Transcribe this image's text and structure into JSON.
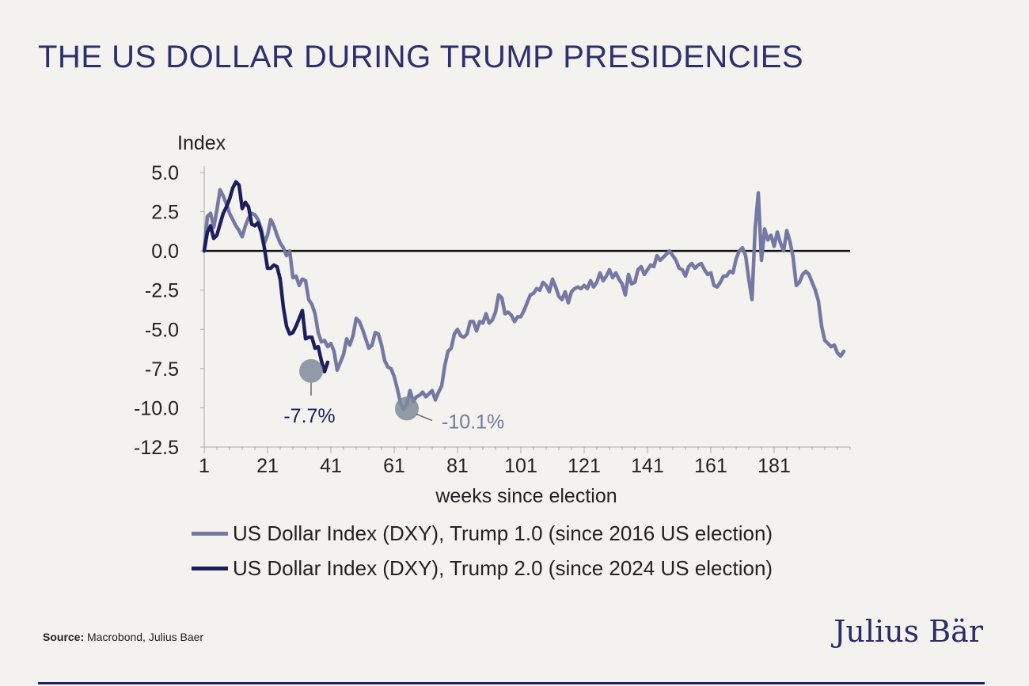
{
  "title": "THE US DOLLAR DURING TRUMP PRESIDENCIES",
  "source_label": "Source:",
  "source_text": "Macrobond, Julius Baer",
  "logo_text": "Julius Bär",
  "colors": {
    "trump1": "#7478a3",
    "trump2": "#1c1f5c",
    "marker": "#7f8b99",
    "zero_line": "#111111"
  },
  "chart_data": {
    "type": "line",
    "ylabel": "Index",
    "xlabel": "weeks since election",
    "ylim": [
      -12.5,
      5.0
    ],
    "yticks": [
      "5.0",
      "2.5",
      "0.0",
      "-2.5",
      "-5.0",
      "-7.5",
      "-10.0",
      "-12.5"
    ],
    "ytick_values": [
      5.0,
      2.5,
      0.0,
      -2.5,
      -5.0,
      -7.5,
      -10.0,
      -12.5
    ],
    "xlim": [
      1,
      205
    ],
    "xticks": [
      1,
      21,
      41,
      61,
      81,
      101,
      121,
      141,
      161,
      181
    ],
    "annotations": [
      {
        "text": "-7.7%",
        "x": 35,
        "y": -7.7,
        "series": "trump2"
      },
      {
        "text": "-10.1%",
        "x": 65,
        "y": -10.1,
        "series": "trump1"
      }
    ],
    "series": [
      {
        "id": "trump1",
        "name": "US Dollar Index (DXY), Trump 1.0 (since 2016 US election)",
        "points": [
          [
            1,
            0
          ],
          [
            2,
            2.2
          ],
          [
            3,
            2.4
          ],
          [
            4,
            1.5
          ],
          [
            5,
            2.6
          ],
          [
            6,
            3.9
          ],
          [
            7,
            3.5
          ],
          [
            8,
            3.0
          ],
          [
            9,
            2.4
          ],
          [
            10,
            2.0
          ],
          [
            11,
            1.6
          ],
          [
            12,
            1.3
          ],
          [
            13,
            0.9
          ],
          [
            14,
            1.6
          ],
          [
            15,
            2.1
          ],
          [
            16,
            2.4
          ],
          [
            17,
            2.3
          ],
          [
            18,
            2.0
          ],
          [
            19,
            1.4
          ],
          [
            20,
            0.5
          ],
          [
            21,
            1.0
          ],
          [
            22,
            2.0
          ],
          [
            23,
            1.6
          ],
          [
            24,
            1.0
          ],
          [
            25,
            0.5
          ],
          [
            26,
            0.2
          ],
          [
            27,
            -0.3
          ],
          [
            28,
            0.0
          ],
          [
            29,
            -1.7
          ],
          [
            30,
            -1.6
          ],
          [
            31,
            -2.2
          ],
          [
            32,
            -1.8
          ],
          [
            33,
            -1.9
          ],
          [
            34,
            -3.1
          ],
          [
            35,
            -3.4
          ],
          [
            36,
            -4.0
          ],
          [
            37,
            -5.2
          ],
          [
            38,
            -5.8
          ],
          [
            39,
            -5.7
          ],
          [
            40,
            -6.1
          ],
          [
            41,
            -5.9
          ],
          [
            42,
            -6.4
          ],
          [
            43,
            -7.6
          ],
          [
            44,
            -7.1
          ],
          [
            45,
            -6.6
          ],
          [
            46,
            -5.6
          ],
          [
            47,
            -6.0
          ],
          [
            48,
            -5.4
          ],
          [
            49,
            -4.3
          ],
          [
            50,
            -4.5
          ],
          [
            51,
            -5.0
          ],
          [
            52,
            -5.6
          ],
          [
            53,
            -6.2
          ],
          [
            54,
            -6.0
          ],
          [
            55,
            -5.2
          ],
          [
            56,
            -5.3
          ],
          [
            57,
            -6.0
          ],
          [
            58,
            -7.0
          ],
          [
            59,
            -7.4
          ],
          [
            60,
            -7.5
          ],
          [
            61,
            -8.0
          ],
          [
            62,
            -8.8
          ],
          [
            63,
            -9.7
          ],
          [
            64,
            -10.1
          ],
          [
            65,
            -9.8
          ],
          [
            66,
            -8.9
          ],
          [
            67,
            -9.6
          ],
          [
            68,
            -9.3
          ],
          [
            69,
            -9.2
          ],
          [
            70,
            -9.0
          ],
          [
            71,
            -9.3
          ],
          [
            72,
            -9.1
          ],
          [
            73,
            -8.9
          ],
          [
            74,
            -9.5
          ],
          [
            75,
            -9.0
          ],
          [
            76,
            -8.6
          ],
          [
            77,
            -7.3
          ],
          [
            78,
            -6.4
          ],
          [
            79,
            -6.2
          ],
          [
            80,
            -5.3
          ],
          [
            81,
            -5.0
          ],
          [
            82,
            -5.4
          ],
          [
            83,
            -5.5
          ],
          [
            84,
            -5.3
          ],
          [
            85,
            -4.5
          ],
          [
            86,
            -4.5
          ],
          [
            87,
            -5.1
          ],
          [
            88,
            -4.5
          ],
          [
            89,
            -4.6
          ],
          [
            90,
            -4.0
          ],
          [
            91,
            -4.6
          ],
          [
            92,
            -4.4
          ],
          [
            93,
            -3.9
          ],
          [
            94,
            -2.8
          ],
          [
            95,
            -3.0
          ],
          [
            96,
            -4.0
          ],
          [
            97,
            -3.9
          ],
          [
            98,
            -4.1
          ],
          [
            99,
            -4.5
          ],
          [
            100,
            -4.2
          ],
          [
            101,
            -4.2
          ],
          [
            102,
            -3.8
          ],
          [
            103,
            -3.3
          ],
          [
            104,
            -2.8
          ],
          [
            105,
            -2.7
          ],
          [
            106,
            -2.4
          ],
          [
            107,
            -2.5
          ],
          [
            108,
            -2.0
          ],
          [
            109,
            -2.2
          ],
          [
            110,
            -2.6
          ],
          [
            111,
            -1.8
          ],
          [
            112,
            -2.3
          ],
          [
            113,
            -2.9
          ],
          [
            114,
            -3.1
          ],
          [
            115,
            -2.6
          ],
          [
            116,
            -3.3
          ],
          [
            117,
            -2.6
          ],
          [
            118,
            -2.4
          ],
          [
            119,
            -2.3
          ],
          [
            120,
            -2.4
          ],
          [
            121,
            -2.2
          ],
          [
            122,
            -2.4
          ],
          [
            123,
            -1.9
          ],
          [
            124,
            -2.3
          ],
          [
            125,
            -2.0
          ],
          [
            126,
            -1.4
          ],
          [
            127,
            -1.9
          ],
          [
            128,
            -1.6
          ],
          [
            129,
            -1.2
          ],
          [
            130,
            -1.7
          ],
          [
            131,
            -1.4
          ],
          [
            132,
            -1.8
          ],
          [
            133,
            -2.1
          ],
          [
            134,
            -2.8
          ],
          [
            135,
            -1.5
          ],
          [
            136,
            -2.1
          ],
          [
            137,
            -2.0
          ],
          [
            138,
            -1.2
          ],
          [
            139,
            -1.0
          ],
          [
            140,
            -1.5
          ],
          [
            141,
            -1.2
          ],
          [
            142,
            -0.9
          ],
          [
            143,
            -1.0
          ],
          [
            144,
            -0.3
          ],
          [
            145,
            -0.6
          ],
          [
            146,
            -0.4
          ],
          [
            147,
            -0.2
          ],
          [
            148,
            0.0
          ],
          [
            149,
            -0.3
          ],
          [
            150,
            -0.6
          ],
          [
            151,
            -1.1
          ],
          [
            152,
            -1.2
          ],
          [
            153,
            -1.6
          ],
          [
            154,
            -1.0
          ],
          [
            155,
            -0.8
          ],
          [
            156,
            -1.1
          ],
          [
            157,
            -0.9
          ],
          [
            158,
            -0.8
          ],
          [
            159,
            -1.2
          ],
          [
            160,
            -1.5
          ],
          [
            161,
            -1.4
          ],
          [
            162,
            -2.2
          ],
          [
            163,
            -2.3
          ],
          [
            164,
            -2.0
          ],
          [
            165,
            -1.6
          ],
          [
            166,
            -1.6
          ],
          [
            167,
            -1.3
          ],
          [
            168,
            -1.4
          ],
          [
            169,
            -0.5
          ],
          [
            170,
            0.0
          ],
          [
            171,
            0.2
          ],
          [
            172,
            -0.3
          ],
          [
            173,
            -1.8
          ],
          [
            174,
            -3.1
          ],
          [
            175,
            1.4
          ],
          [
            176,
            3.7
          ],
          [
            177,
            -0.6
          ],
          [
            178,
            1.4
          ],
          [
            179,
            0.7
          ],
          [
            180,
            1.0
          ],
          [
            181,
            0.3
          ],
          [
            182,
            1.2
          ],
          [
            183,
            0.5
          ],
          [
            184,
            0.0
          ],
          [
            185,
            1.3
          ],
          [
            186,
            0.6
          ],
          [
            187,
            -0.4
          ],
          [
            188,
            -2.2
          ],
          [
            189,
            -2.0
          ],
          [
            190,
            -1.5
          ],
          [
            191,
            -1.3
          ],
          [
            192,
            -1.5
          ],
          [
            193,
            -2.0
          ],
          [
            194,
            -2.5
          ],
          [
            195,
            -3.2
          ],
          [
            196,
            -4.8
          ],
          [
            197,
            -5.7
          ],
          [
            198,
            -5.9
          ],
          [
            199,
            -6.1
          ],
          [
            200,
            -6.0
          ],
          [
            201,
            -6.5
          ],
          [
            202,
            -6.7
          ],
          [
            203,
            -6.4
          ]
        ]
      },
      {
        "id": "trump2",
        "name": "US Dollar Index (DXY), Trump 2.0 (since 2024 US election)",
        "points": [
          [
            1,
            0
          ],
          [
            2,
            1.2
          ],
          [
            3,
            1.6
          ],
          [
            4,
            0.8
          ],
          [
            5,
            1.0
          ],
          [
            6,
            1.7
          ],
          [
            7,
            2.4
          ],
          [
            8,
            2.8
          ],
          [
            9,
            3.3
          ],
          [
            10,
            4.0
          ],
          [
            11,
            4.4
          ],
          [
            12,
            4.2
          ],
          [
            13,
            2.7
          ],
          [
            14,
            3.1
          ],
          [
            15,
            2.8
          ],
          [
            16,
            1.7
          ],
          [
            17,
            1.6
          ],
          [
            18,
            1.8
          ],
          [
            19,
            1.2
          ],
          [
            20,
            0.2
          ],
          [
            21,
            -1.1
          ],
          [
            22,
            -1.1
          ],
          [
            23,
            -0.9
          ],
          [
            24,
            -1.0
          ],
          [
            25,
            -1.8
          ],
          [
            26,
            -3.6
          ],
          [
            27,
            -4.8
          ],
          [
            28,
            -5.3
          ],
          [
            29,
            -5.2
          ],
          [
            30,
            -4.8
          ],
          [
            31,
            -4.3
          ],
          [
            32,
            -3.8
          ],
          [
            33,
            -5.6
          ],
          [
            34,
            -5.5
          ],
          [
            35,
            -5.5
          ],
          [
            36,
            -6.2
          ],
          [
            37,
            -6.1
          ],
          [
            38,
            -7.0
          ],
          [
            39,
            -7.7
          ],
          [
            40,
            -7.1
          ]
        ]
      }
    ]
  }
}
